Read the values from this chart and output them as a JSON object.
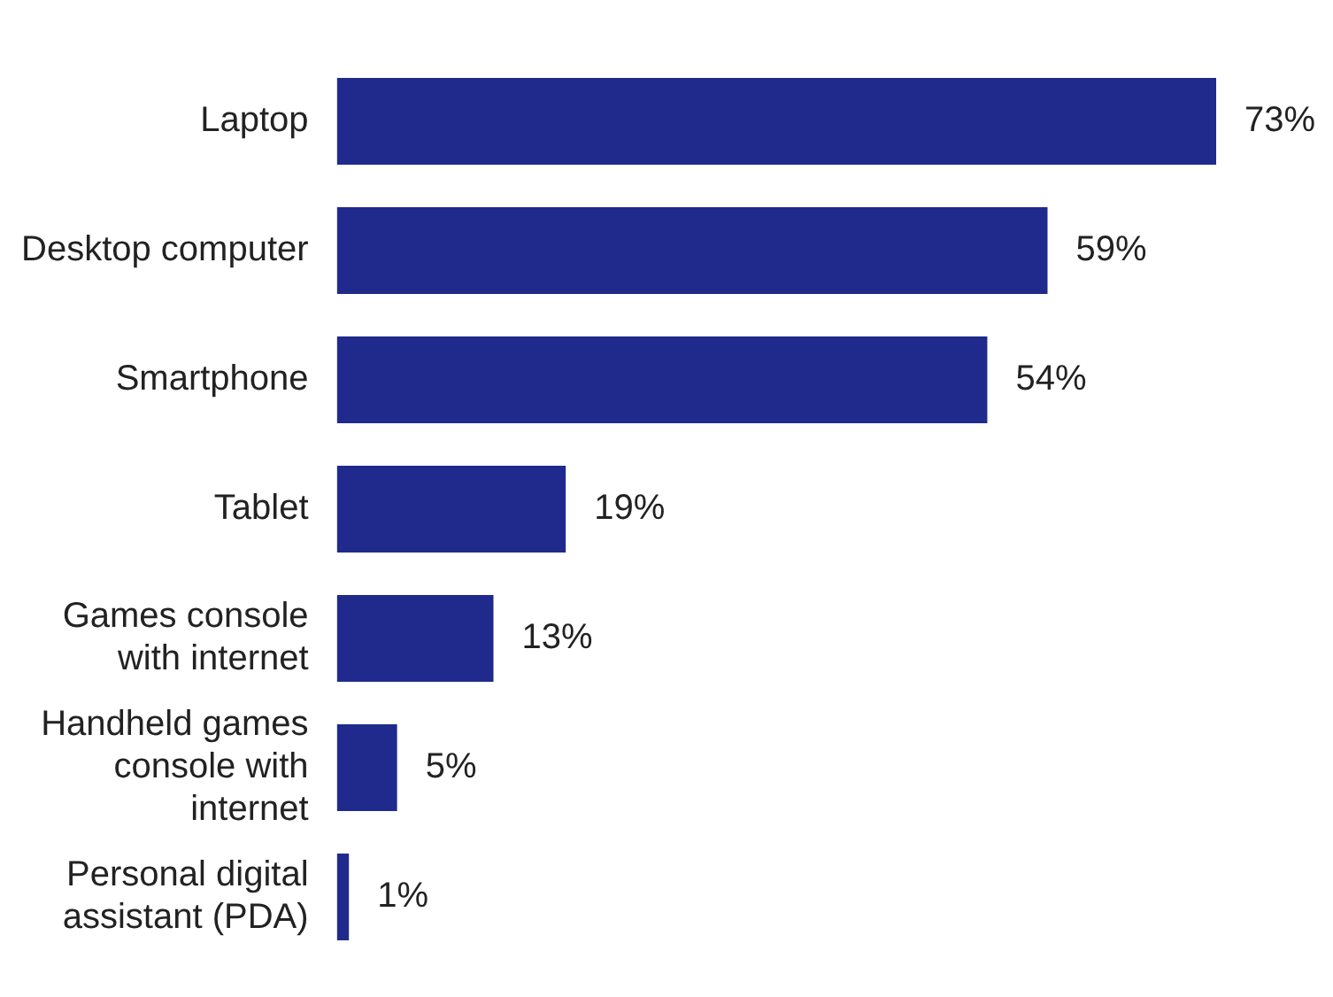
{
  "chart_data": {
    "type": "bar",
    "orientation": "horizontal",
    "categories": [
      "Laptop",
      "Desktop computer",
      "Smartphone",
      "Tablet",
      "Games console with internet",
      "Handheld games console with internet",
      "Personal digital assistant (PDA)"
    ],
    "values": [
      73,
      59,
      54,
      19,
      13,
      5,
      1
    ],
    "value_labels": [
      "73%",
      "59%",
      "54%",
      "19%",
      "13%",
      "5%",
      "1%"
    ],
    "color": "#1f2a8c"
  }
}
